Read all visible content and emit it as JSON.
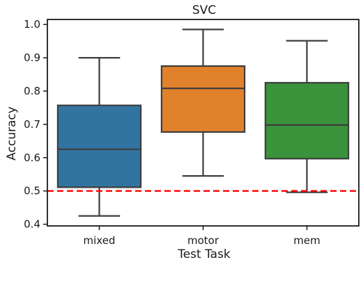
{
  "chart_data": {
    "type": "box",
    "title": "SVC",
    "xlabel": "Test Task",
    "ylabel": "Accuracy",
    "ylim": [
      0.395,
      1.015
    ],
    "yticks": [
      "0.4",
      "0.5",
      "0.6",
      "0.7",
      "0.8",
      "0.9",
      "1.0"
    ],
    "categories": [
      "mixed",
      "motor",
      "mem"
    ],
    "boxes": [
      {
        "category": "mixed",
        "whisker_low": 0.425,
        "q1": 0.511,
        "median": 0.625,
        "q3": 0.757,
        "whisker_high": 0.9,
        "color": "#3274a1"
      },
      {
        "category": "motor",
        "whisker_low": 0.545,
        "q1": 0.677,
        "median": 0.808,
        "q3": 0.875,
        "whisker_high": 0.985,
        "color": "#e1812c"
      },
      {
        "category": "mem",
        "whisker_low": 0.496,
        "q1": 0.597,
        "median": 0.698,
        "q3": 0.825,
        "whisker_high": 0.951,
        "color": "#3a923a"
      }
    ],
    "reference_line": {
      "y": 0.5,
      "color": "#ff0000",
      "style": "dashed"
    },
    "grid": false,
    "legend": "none"
  }
}
